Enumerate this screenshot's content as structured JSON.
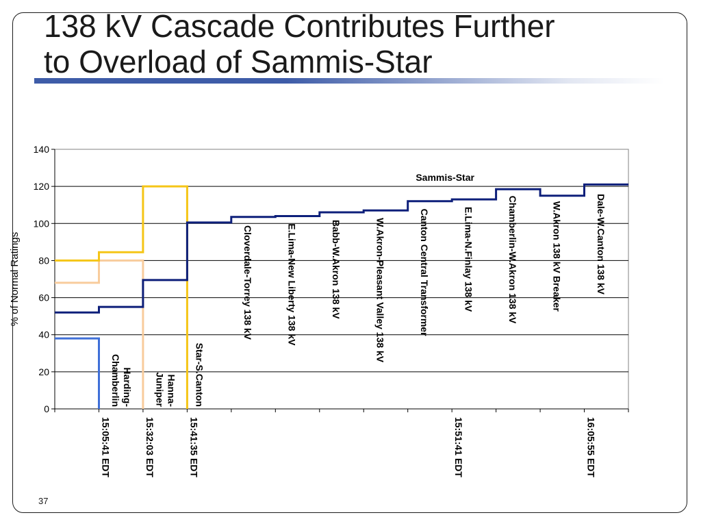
{
  "slide": {
    "title_line1": "138 kV Cascade Contributes Further",
    "title_line2": "to Overload of Sammis-Star",
    "page_number": "37"
  },
  "chart_data": {
    "type": "line",
    "title": "",
    "xlabel": "",
    "ylabel": "% of Normal Ratings",
    "ylim": [
      0,
      140
    ],
    "yticks": [
      0,
      20,
      40,
      60,
      80,
      100,
      120,
      140
    ],
    "grid": true,
    "x_slots": 13,
    "x_tick_labels": [
      {
        "slot": 1,
        "label": "15:05:41 EDT"
      },
      {
        "slot": 2,
        "label": "15:32:03 EDT"
      },
      {
        "slot": 3,
        "label": "15:41:35 EDT"
      },
      {
        "slot": 9,
        "label": "15:51:41 EDT"
      },
      {
        "slot": 12,
        "label": "16:05:55 EDT"
      }
    ],
    "series": [
      {
        "name": "",
        "color": "#3f6fd8",
        "points": [
          [
            0,
            38
          ],
          [
            1,
            38
          ],
          [
            1,
            0
          ]
        ]
      },
      {
        "name": "",
        "color": "#f8cc9c",
        "points": [
          [
            0,
            68
          ],
          [
            1,
            68
          ],
          [
            1,
            80
          ],
          [
            2,
            80
          ],
          [
            2,
            0
          ]
        ]
      },
      {
        "name": "",
        "color": "#f5c516",
        "points": [
          [
            0,
            80
          ],
          [
            1,
            80
          ],
          [
            1,
            84.5
          ],
          [
            2,
            84.5
          ],
          [
            2,
            120
          ],
          [
            3,
            120
          ],
          [
            3,
            0
          ]
        ]
      },
      {
        "name": "Sammis-Star",
        "color": "#0d1f7a",
        "points": [
          [
            0,
            52
          ],
          [
            1,
            52
          ],
          [
            1,
            55
          ],
          [
            2,
            55
          ],
          [
            2,
            69.5
          ],
          [
            3,
            69.5
          ],
          [
            3,
            100.5
          ],
          [
            4,
            100.5
          ],
          [
            4,
            103.5
          ],
          [
            5,
            103.5
          ],
          [
            5,
            104
          ],
          [
            6,
            104
          ],
          [
            6,
            106
          ],
          [
            7,
            106
          ],
          [
            7,
            107
          ],
          [
            8,
            107
          ],
          [
            8,
            112
          ],
          [
            9,
            112
          ],
          [
            9,
            113
          ],
          [
            10,
            113
          ],
          [
            10,
            118.5
          ],
          [
            11,
            118.5
          ],
          [
            11,
            115
          ],
          [
            12,
            115
          ],
          [
            12,
            121
          ],
          [
            13,
            121
          ]
        ]
      }
    ],
    "series_label": {
      "text": "Sammis-Star",
      "x": 9,
      "y": 123
    },
    "event_labels": [
      {
        "id": "harding",
        "x": 1.3,
        "y": 0,
        "lines": [
          "Harding-",
          "Chamberlin"
        ]
      },
      {
        "id": "hanna",
        "x": 2.3,
        "y": 0,
        "lines": [
          "Hanna-",
          "Juniper"
        ]
      },
      {
        "id": "star-s-canton",
        "x": 3.2,
        "y": 0,
        "lines": [
          "Star-S.Canton"
        ]
      },
      {
        "id": "cloverdale",
        "x": 4.3,
        "y": 99,
        "lines": [
          "Cloverdale-Torrey 138 kV"
        ]
      },
      {
        "id": "elima-newliberty",
        "x": 5.3,
        "y": 100,
        "lines": [
          "E.Lima-New Liberty 138 kV"
        ]
      },
      {
        "id": "babb",
        "x": 6.3,
        "y": 102,
        "lines": [
          "Babb-W.Akron 138 kV"
        ]
      },
      {
        "id": "wakron-pv",
        "x": 7.3,
        "y": 103,
        "lines": [
          "W.Akron-Pleasant Valley 138 kV"
        ]
      },
      {
        "id": "canton-central",
        "x": 8.3,
        "y": 108,
        "lines": [
          "Canton Central Transformer"
        ]
      },
      {
        "id": "elima-nfinlay",
        "x": 9.3,
        "y": 109,
        "lines": [
          "E.Lima-N.Finlay 138 kV"
        ]
      },
      {
        "id": "chamberlin-wakron",
        "x": 10.3,
        "y": 115,
        "lines": [
          "Chamberlin-W.Akron 138 kV"
        ]
      },
      {
        "id": "wakron-breaker",
        "x": 11.3,
        "y": 112,
        "lines": [
          "W.Akron 138 kV Breaker"
        ]
      },
      {
        "id": "dale-wcanton",
        "x": 12.3,
        "y": 116,
        "lines": [
          "Dale-W.Canton 138 kV"
        ]
      }
    ]
  }
}
